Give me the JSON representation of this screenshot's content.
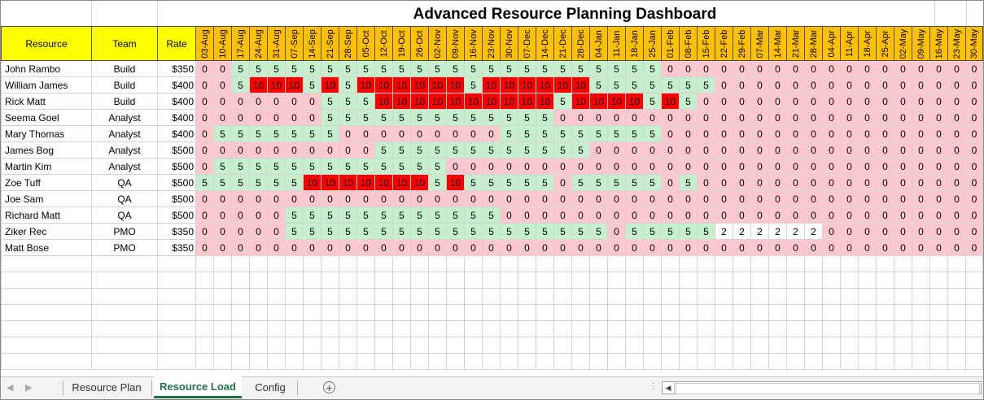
{
  "title": "Advanced Resource Planning Dashboard",
  "headers": {
    "resource": "Resource",
    "team": "Team",
    "rate": "Rate"
  },
  "dates": [
    "03-Aug",
    "10-Aug",
    "17-Aug",
    "24-Aug",
    "31-Aug",
    "07-Sep",
    "14-Sep",
    "21-Sep",
    "28-Sep",
    "05-Oct",
    "12-Oct",
    "19-Oct",
    "26-Oct",
    "02-Nov",
    "09-Nov",
    "16-Nov",
    "23-Nov",
    "30-Nov",
    "07-Dec",
    "14-Dec",
    "21-Dec",
    "28-Dec",
    "04-Jan",
    "11-Jan",
    "18-Jan",
    "25-Jan",
    "01-Feb",
    "08-Feb",
    "15-Feb",
    "22-Feb",
    "29-Feb",
    "07-Mar",
    "14-Mar",
    "21-Mar",
    "28-Mar",
    "04-Apr",
    "11-Apr",
    "18-Apr",
    "25-Apr",
    "02-May",
    "09-May",
    "16-May",
    "23-May",
    "30-May"
  ],
  "rows": [
    {
      "name": "John Rambo",
      "team": "Build",
      "rate": "$350",
      "values": [
        0,
        0,
        5,
        5,
        5,
        5,
        5,
        5,
        5,
        5,
        5,
        5,
        5,
        5,
        5,
        5,
        5,
        5,
        5,
        5,
        5,
        5,
        5,
        5,
        5,
        5,
        0,
        0,
        0,
        0,
        0,
        0,
        0,
        0,
        0,
        0,
        0,
        0,
        0,
        0,
        0,
        0,
        0,
        0
      ]
    },
    {
      "name": "William James",
      "team": "Build",
      "rate": "$400",
      "values": [
        0,
        0,
        5,
        10,
        10,
        10,
        5,
        10,
        5,
        10,
        10,
        10,
        10,
        10,
        10,
        5,
        10,
        10,
        10,
        10,
        10,
        10,
        5,
        5,
        5,
        5,
        5,
        5,
        5,
        0,
        0,
        0,
        0,
        0,
        0,
        0,
        0,
        0,
        0,
        0,
        0,
        0,
        0,
        0
      ]
    },
    {
      "name": "Rick Matt",
      "team": "Build",
      "rate": "$400",
      "values": [
        0,
        0,
        0,
        0,
        0,
        0,
        0,
        5,
        5,
        5,
        10,
        10,
        10,
        10,
        10,
        10,
        10,
        10,
        10,
        10,
        5,
        10,
        10,
        10,
        10,
        5,
        10,
        5,
        0,
        0,
        0,
        0,
        0,
        0,
        0,
        0,
        0,
        0,
        0,
        0,
        0,
        0,
        0,
        0
      ]
    },
    {
      "name": "Seema Goel",
      "team": "Analyst",
      "rate": "$400",
      "values": [
        0,
        0,
        0,
        0,
        0,
        0,
        0,
        5,
        5,
        5,
        5,
        5,
        5,
        5,
        5,
        5,
        5,
        5,
        5,
        5,
        0,
        0,
        0,
        0,
        0,
        0,
        0,
        0,
        0,
        0,
        0,
        0,
        0,
        0,
        0,
        0,
        0,
        0,
        0,
        0,
        0,
        0,
        0,
        0
      ]
    },
    {
      "name": "Mary Thomas",
      "team": "Analyst",
      "rate": "$400",
      "values": [
        0,
        5,
        5,
        5,
        5,
        5,
        5,
        5,
        0,
        0,
        0,
        0,
        0,
        0,
        0,
        0,
        0,
        5,
        5,
        5,
        5,
        5,
        5,
        5,
        5,
        5,
        0,
        0,
        0,
        0,
        0,
        0,
        0,
        0,
        0,
        0,
        0,
        0,
        0,
        0,
        0,
        0,
        0,
        0
      ]
    },
    {
      "name": "James Bog",
      "team": "Analyst",
      "rate": "$500",
      "values": [
        0,
        0,
        0,
        0,
        0,
        0,
        0,
        0,
        0,
        0,
        5,
        5,
        5,
        5,
        5,
        5,
        5,
        5,
        5,
        5,
        5,
        5,
        0,
        0,
        0,
        0,
        0,
        0,
        0,
        0,
        0,
        0,
        0,
        0,
        0,
        0,
        0,
        0,
        0,
        0,
        0,
        0,
        0,
        0
      ]
    },
    {
      "name": "Martin Kim",
      "team": "Analyst",
      "rate": "$500",
      "values": [
        0,
        5,
        5,
        5,
        5,
        5,
        5,
        5,
        5,
        5,
        5,
        5,
        5,
        5,
        0,
        0,
        0,
        0,
        0,
        0,
        0,
        0,
        0,
        0,
        0,
        0,
        0,
        0,
        0,
        0,
        0,
        0,
        0,
        0,
        0,
        0,
        0,
        0,
        0,
        0,
        0,
        0,
        0,
        0
      ]
    },
    {
      "name": "Zoe Tuff",
      "team": "QA",
      "rate": "$500",
      "values": [
        5,
        5,
        5,
        5,
        5,
        5,
        10,
        10,
        10,
        10,
        10,
        10,
        10,
        5,
        10,
        5,
        5,
        5,
        5,
        5,
        0,
        5,
        5,
        5,
        5,
        5,
        0,
        5,
        0,
        0,
        0,
        0,
        0,
        0,
        0,
        0,
        0,
        0,
        0,
        0,
        0,
        0,
        0,
        0
      ]
    },
    {
      "name": "Joe Sam",
      "team": "QA",
      "rate": "$500",
      "values": [
        0,
        0,
        0,
        0,
        0,
        0,
        0,
        0,
        0,
        0,
        0,
        0,
        0,
        0,
        0,
        0,
        0,
        0,
        0,
        0,
        0,
        0,
        0,
        0,
        0,
        0,
        0,
        0,
        0,
        0,
        0,
        0,
        0,
        0,
        0,
        0,
        0,
        0,
        0,
        0,
        0,
        0,
        0,
        0
      ]
    },
    {
      "name": "Richard Matt",
      "team": "QA",
      "rate": "$500",
      "values": [
        0,
        0,
        0,
        0,
        0,
        5,
        5,
        5,
        5,
        5,
        5,
        5,
        5,
        5,
        5,
        5,
        5,
        0,
        0,
        0,
        0,
        0,
        0,
        0,
        0,
        0,
        0,
        0,
        0,
        0,
        0,
        0,
        0,
        0,
        0,
        0,
        0,
        0,
        0,
        0,
        0,
        0,
        0,
        0
      ]
    },
    {
      "name": "Ziker Rec",
      "team": "PMO",
      "rate": "$350",
      "values": [
        0,
        0,
        0,
        0,
        0,
        5,
        5,
        5,
        5,
        5,
        5,
        5,
        5,
        5,
        5,
        5,
        5,
        5,
        5,
        5,
        5,
        5,
        5,
        0,
        5,
        5,
        5,
        5,
        5,
        2,
        2,
        2,
        2,
        2,
        2,
        0,
        0,
        0,
        0,
        0,
        0,
        0,
        0,
        0
      ]
    },
    {
      "name": "Matt Bose",
      "team": "PMO",
      "rate": "$350",
      "values": [
        0,
        0,
        0,
        0,
        0,
        0,
        0,
        0,
        0,
        0,
        0,
        0,
        0,
        0,
        0,
        0,
        0,
        0,
        0,
        0,
        0,
        0,
        0,
        0,
        0,
        0,
        0,
        0,
        0,
        0,
        0,
        0,
        0,
        0,
        0,
        0,
        0,
        0,
        0,
        0,
        0,
        0,
        0,
        0
      ]
    }
  ],
  "colors": {
    "zero_fill": "#ffc7ce",
    "low_fill": "#c6efce",
    "high_fill": "#ff0000",
    "partial_fill": "#ffffff",
    "partial_text": "#c00000",
    "header_yellow": "#ffff00",
    "date_header_orange": "#ffc000",
    "active_tab_green": "#217346"
  },
  "tabs": [
    {
      "label": "Resource Plan",
      "active": false
    },
    {
      "label": "Resource Load",
      "active": true
    },
    {
      "label": "Config",
      "active": false
    }
  ],
  "icons": {
    "scroll_left": "triangle-left",
    "scroll_right": "triangle-right",
    "add_sheet": "plus-circle",
    "scroll_dots": "ellipsis"
  }
}
